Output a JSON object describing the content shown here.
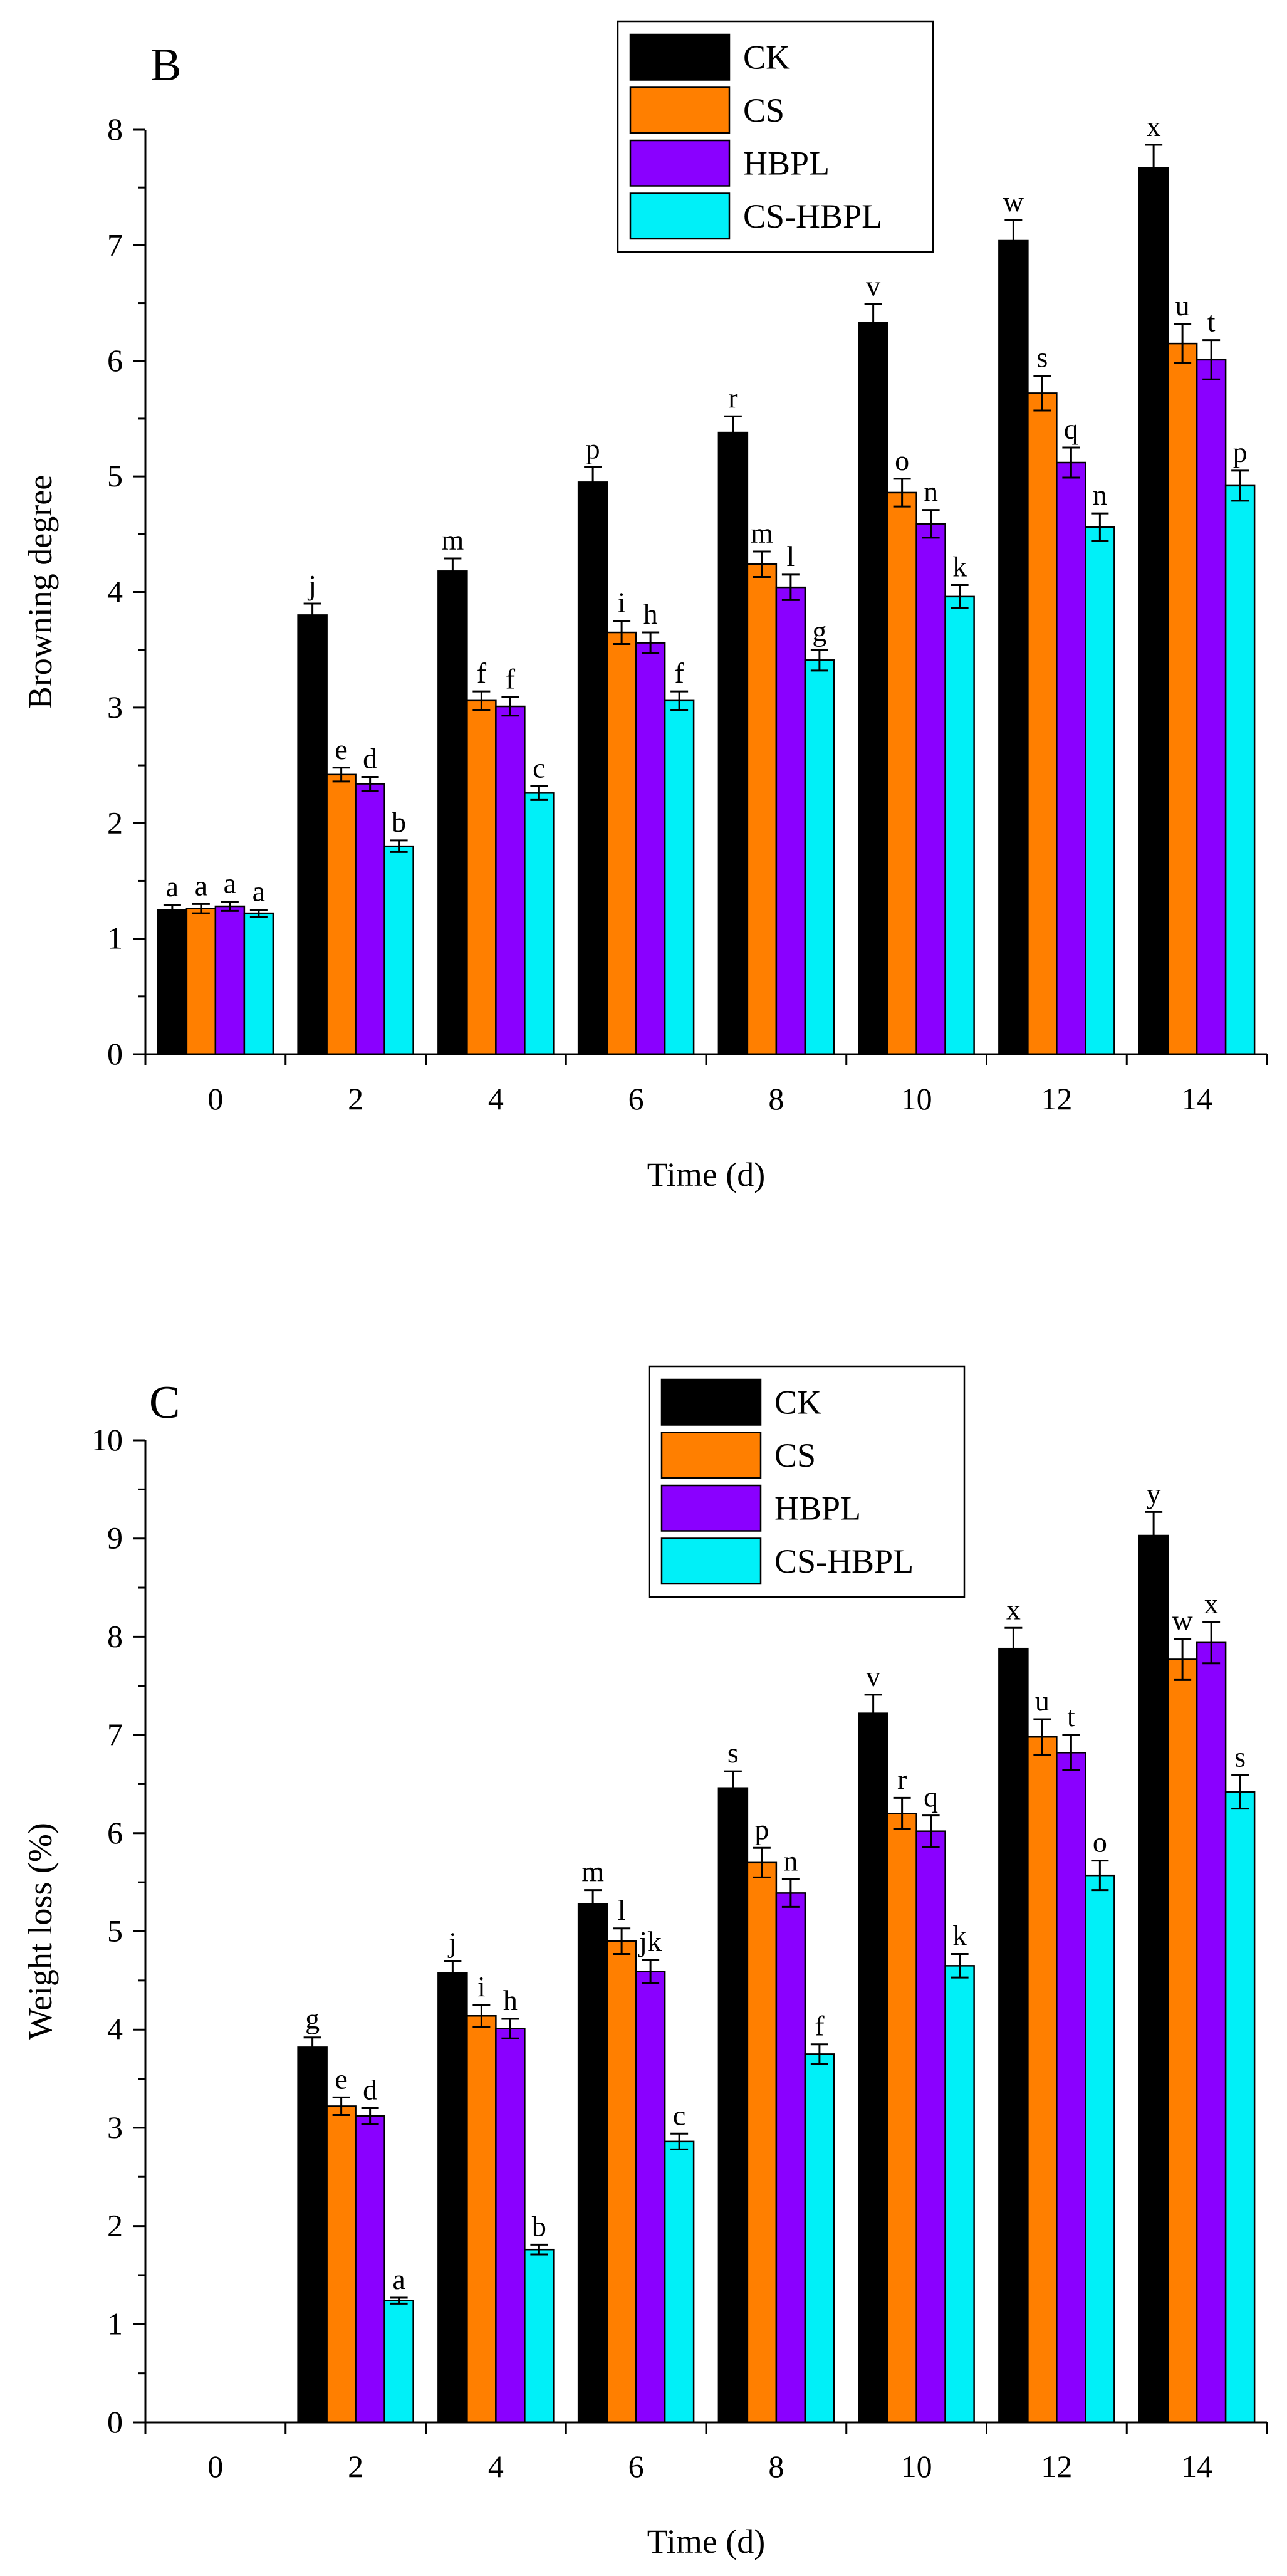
{
  "colors": {
    "CK": "#000000",
    "CS": "#ff7f00",
    "HBPL": "#8a00ff",
    "CS-HBPL": "#00f0f8"
  },
  "chart_data": [
    {
      "type": "bar",
      "panel_label": "B",
      "title": "",
      "xlabel": "Time (d)",
      "ylabel": "Browning degree",
      "ylim": [
        0,
        8
      ],
      "yticks": [
        "0",
        "1",
        "2",
        "3",
        "4",
        "5",
        "6",
        "7",
        "8"
      ],
      "categories": [
        "0",
        "2",
        "4",
        "6",
        "8",
        "10",
        "12",
        "14"
      ],
      "legend": {
        "position": "top",
        "entries": [
          "CK",
          "CS",
          "HBPL",
          "CS-HBPL"
        ]
      },
      "series": [
        {
          "name": "CK",
          "values": [
            1.25,
            3.8,
            4.18,
            4.95,
            5.38,
            6.33,
            7.04,
            7.67
          ],
          "errors": [
            0.04,
            0.1,
            0.11,
            0.13,
            0.14,
            0.16,
            0.18,
            0.2
          ],
          "letters": [
            "a",
            "j",
            "m",
            "p",
            "r",
            "v",
            "w",
            "x"
          ]
        },
        {
          "name": "CS",
          "values": [
            1.26,
            2.42,
            3.06,
            3.65,
            4.24,
            4.86,
            5.72,
            6.15
          ],
          "errors": [
            0.04,
            0.06,
            0.08,
            0.1,
            0.11,
            0.12,
            0.15,
            0.17
          ],
          "letters": [
            "a",
            "e",
            "f",
            "i",
            "m",
            "o",
            "s",
            "u"
          ]
        },
        {
          "name": "HBPL",
          "values": [
            1.28,
            2.34,
            3.01,
            3.56,
            4.04,
            4.59,
            5.12,
            6.01
          ],
          "errors": [
            0.04,
            0.06,
            0.08,
            0.09,
            0.11,
            0.12,
            0.13,
            0.17
          ],
          "letters": [
            "a",
            "d",
            "f",
            "h",
            "l",
            "n",
            "q",
            "t"
          ]
        },
        {
          "name": "CS-HBPL",
          "values": [
            1.22,
            1.8,
            2.26,
            3.06,
            3.41,
            3.96,
            4.56,
            4.92
          ],
          "errors": [
            0.03,
            0.05,
            0.06,
            0.08,
            0.09,
            0.1,
            0.12,
            0.13
          ],
          "letters": [
            "a",
            "b",
            "c",
            "f",
            "g",
            "k",
            "n",
            "p"
          ]
        }
      ]
    },
    {
      "type": "bar",
      "panel_label": "C",
      "title": "",
      "xlabel": "Time (d)",
      "ylabel": "Weight loss (%)",
      "ylim": [
        0,
        10
      ],
      "yticks": [
        "0",
        "1",
        "2",
        "3",
        "4",
        "5",
        "6",
        "7",
        "8",
        "9",
        "10"
      ],
      "categories": [
        "0",
        "2",
        "4",
        "6",
        "8",
        "10",
        "12",
        "14"
      ],
      "legend": {
        "position": "top",
        "entries": [
          "CK",
          "CS",
          "HBPL",
          "CS-HBPL"
        ]
      },
      "series": [
        {
          "name": "CK",
          "values": [
            0,
            3.82,
            4.58,
            5.28,
            6.46,
            7.22,
            7.88,
            9.03
          ],
          "errors": [
            0,
            0.1,
            0.12,
            0.14,
            0.17,
            0.19,
            0.21,
            0.24
          ],
          "letters": [
            "",
            "g",
            "j",
            "m",
            "s",
            "v",
            "x",
            "y"
          ]
        },
        {
          "name": "CS",
          "values": [
            0,
            3.22,
            4.14,
            4.9,
            5.7,
            6.2,
            6.98,
            7.77
          ],
          "errors": [
            0,
            0.09,
            0.11,
            0.13,
            0.15,
            0.16,
            0.18,
            0.21
          ],
          "letters": [
            "",
            "e",
            "i",
            "l",
            "p",
            "r",
            "u",
            "w"
          ]
        },
        {
          "name": "HBPL",
          "values": [
            0,
            3.12,
            4.01,
            4.59,
            5.39,
            6.02,
            6.82,
            7.94
          ],
          "errors": [
            0,
            0.08,
            0.1,
            0.12,
            0.14,
            0.16,
            0.18,
            0.21
          ],
          "letters": [
            "",
            "d",
            "h",
            "jk",
            "n",
            "q",
            "t",
            "x"
          ]
        },
        {
          "name": "CS-HBPL",
          "values": [
            0,
            1.24,
            1.76,
            2.86,
            3.75,
            4.65,
            5.57,
            6.42
          ],
          "errors": [
            0,
            0.03,
            0.05,
            0.08,
            0.1,
            0.12,
            0.15,
            0.17
          ],
          "letters": [
            "",
            "a",
            "b",
            "c",
            "f",
            "k",
            "o",
            "s"
          ]
        }
      ]
    }
  ]
}
